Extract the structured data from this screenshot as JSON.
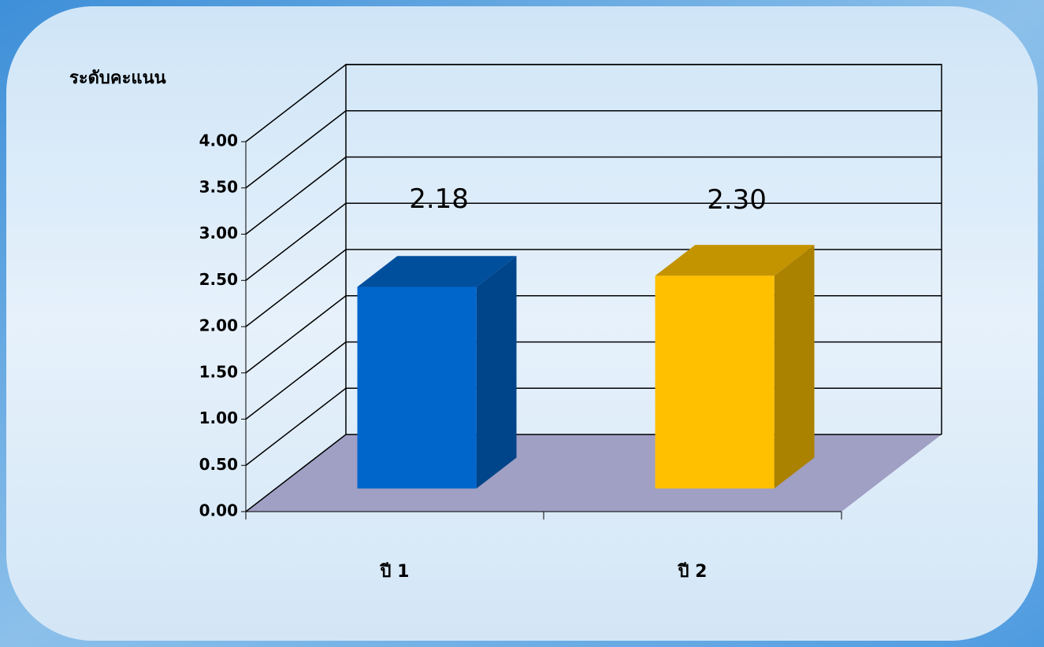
{
  "chart_data": {
    "type": "bar3d",
    "y_label": "ระดับคะแนน",
    "categories": [
      "ปี 1",
      "ปี 2"
    ],
    "values": [
      2.18,
      2.3
    ],
    "value_labels": [
      "2.18",
      "2.30"
    ],
    "colors": [
      "#0066cc",
      "#ffc000"
    ],
    "ylim": [
      0,
      4
    ],
    "yticks": [
      {
        "value": 0,
        "label": "0.00"
      },
      {
        "value": 0.5,
        "label": "0.50"
      },
      {
        "value": 1,
        "label": "1.00"
      },
      {
        "value": 1.5,
        "label": "1.50"
      },
      {
        "value": 2,
        "label": "2.00"
      },
      {
        "value": 2.5,
        "label": "2.50"
      },
      {
        "value": 3,
        "label": "3.00"
      },
      {
        "value": 3.5,
        "label": "3.50"
      },
      {
        "value": 4,
        "label": "4.00"
      }
    ],
    "grid": true
  }
}
